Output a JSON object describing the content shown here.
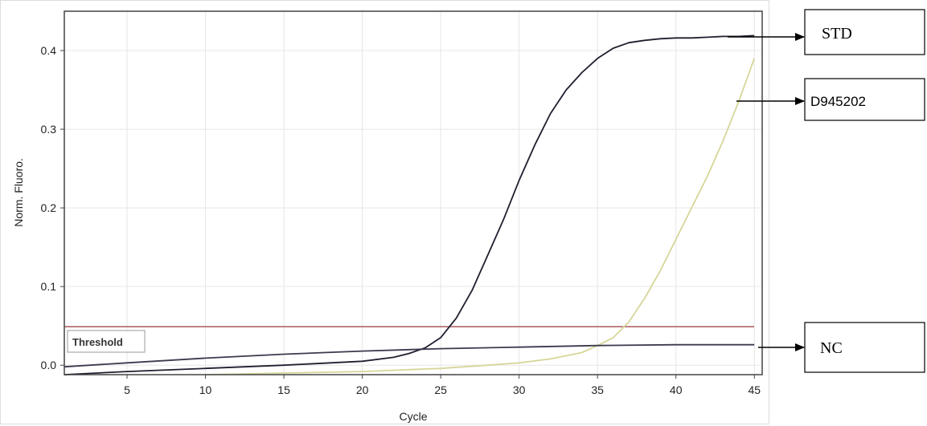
{
  "chart_data": {
    "type": "line",
    "xlabel": "Cycle",
    "ylabel": "Norm. Fluoro.",
    "xlim": [
      1,
      45.5
    ],
    "ylim": [
      -0.012,
      0.45
    ],
    "x_ticks": [
      5,
      10,
      15,
      20,
      25,
      30,
      35,
      40,
      45
    ],
    "y_ticks": [
      0.0,
      0.1,
      0.2,
      0.3,
      0.4
    ],
    "y_tick_labels": [
      "0.0",
      "0.1",
      "0.2",
      "0.3",
      "0.4"
    ],
    "grid": true,
    "threshold": {
      "label": "Threshold",
      "value": 0.049,
      "color": "#a85a5e"
    },
    "series": [
      {
        "name": "STD",
        "color": "#1f1f30",
        "x": [
          1,
          5,
          10,
          15,
          20,
          22,
          23,
          24,
          25,
          26,
          27,
          28,
          29,
          30,
          31,
          32,
          33,
          34,
          35,
          36,
          37,
          38,
          39,
          40,
          41,
          42,
          43,
          44,
          45
        ],
        "y": [
          -0.012,
          -0.008,
          -0.004,
          0.0,
          0.005,
          0.01,
          0.015,
          0.022,
          0.035,
          0.06,
          0.095,
          0.14,
          0.185,
          0.235,
          0.28,
          0.32,
          0.35,
          0.372,
          0.39,
          0.403,
          0.41,
          0.413,
          0.415,
          0.416,
          0.416,
          0.417,
          0.418,
          0.418,
          0.419
        ]
      },
      {
        "name": "D945202",
        "color": "#d6d69a",
        "x": [
          10,
          15,
          20,
          25,
          28,
          30,
          32,
          34,
          35,
          36,
          37,
          38,
          39,
          40,
          41,
          42,
          43,
          44,
          45
        ],
        "y": [
          -0.012,
          -0.01,
          -0.008,
          -0.004,
          0.0,
          0.003,
          0.008,
          0.016,
          0.025,
          0.035,
          0.055,
          0.085,
          0.12,
          0.16,
          0.2,
          0.24,
          0.285,
          0.335,
          0.39
        ]
      },
      {
        "name": "NC",
        "color": "#3a3a4e",
        "x": [
          1,
          5,
          10,
          15,
          20,
          25,
          30,
          35,
          40,
          45
        ],
        "y": [
          -0.002,
          0.003,
          0.009,
          0.014,
          0.018,
          0.021,
          0.023,
          0.025,
          0.026,
          0.026
        ]
      }
    ]
  },
  "callouts": [
    {
      "label": "STD",
      "series": "STD"
    },
    {
      "label": "D945202",
      "series": "D945202"
    },
    {
      "label": "NC",
      "series": "NC"
    }
  ]
}
